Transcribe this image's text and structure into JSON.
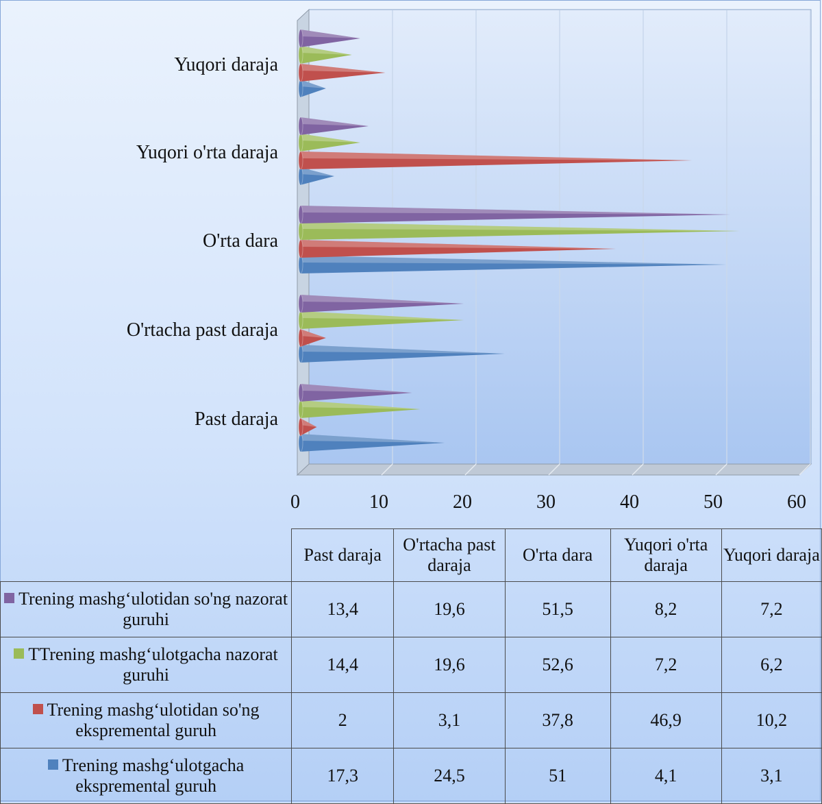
{
  "chart_data": {
    "type": "bar",
    "orientation": "horizontal",
    "style": "3d-cone",
    "categories": [
      "Past daraja",
      "O'rtacha past daraja",
      "O'rta dara",
      "Yuqori o'rta daraja",
      "Yuqori daraja"
    ],
    "series": [
      {
        "name": "Trening mashg‘ulotgacha ekspremental guruh",
        "color": "#4f81bd",
        "values": [
          17.3,
          24.5,
          51,
          4.1,
          3.1
        ]
      },
      {
        "name": "Trening mashg‘ulotidan so'ng ekspremental guruh",
        "color": "#c0504d",
        "values": [
          2,
          3.1,
          37.8,
          46.9,
          10.2
        ]
      },
      {
        "name": "TTrening mashg‘ulotgacha nazorat guruhi",
        "color": "#9bbb59",
        "values": [
          14.4,
          19.6,
          52.6,
          7.2,
          6.2
        ]
      },
      {
        "name": "Trening mashg‘ulotidan so'ng nazorat guruhi",
        "color": "#8064a2",
        "values": [
          13.4,
          19.6,
          51.5,
          8.2,
          7.2
        ]
      }
    ],
    "xlim": [
      0,
      60
    ],
    "xticks": [
      "0",
      "10",
      "20",
      "30",
      "40",
      "50",
      "60"
    ],
    "grid": true,
    "data_table": {
      "column_headers": [
        "Past daraja",
        "O'rtacha past daraja",
        "O'rta dara",
        "Yuqori o'rta daraja",
        "Yuqori daraja"
      ],
      "rows": [
        {
          "label": "Trening mashg‘ulotidan so'ng nazorat guruhi",
          "color": "#8064a2",
          "cells": [
            "13,4",
            "19,6",
            "51,5",
            "8,2",
            "7,2"
          ]
        },
        {
          "label": "TTrening mashg‘ulotgacha nazorat guruhi",
          "color": "#9bbb59",
          "cells": [
            "14,4",
            "19,6",
            "52,6",
            "7,2",
            "6,2"
          ]
        },
        {
          "label": "Trening mashg‘ulotidan so'ng ekspremental guruh",
          "color": "#c0504d",
          "cells": [
            "2",
            "3,1",
            "37,8",
            "46,9",
            "10,2"
          ]
        },
        {
          "label": "Trening mashg‘ulotgacha ekspremental guruh",
          "color": "#4f81bd",
          "cells": [
            "17,3",
            "24,5",
            "51",
            "4,1",
            "3,1"
          ]
        }
      ]
    }
  }
}
